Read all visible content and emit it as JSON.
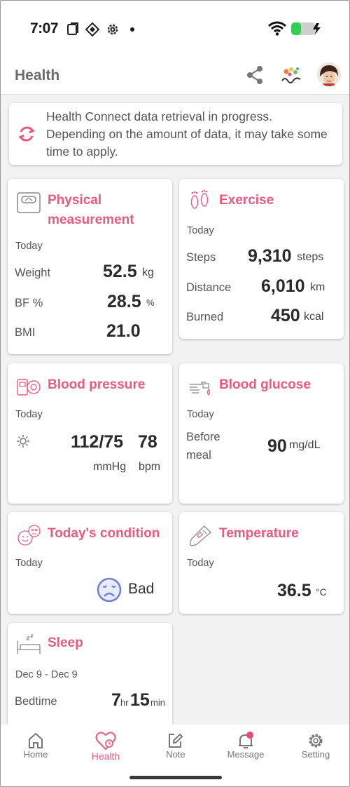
{
  "status_bar": {
    "time": "7:07"
  },
  "app_bar": {
    "title": "Health"
  },
  "notice": {
    "text": "Health Connect data retrieval in progress. Depending on the amount of data, it may take some time to apply."
  },
  "cards": {
    "physical": {
      "title_line1": "Physical",
      "title_line2": "measurement",
      "period": "Today",
      "weight_label": "Weight",
      "weight_value": "52.5",
      "weight_unit": "kg",
      "bf_label": "BF %",
      "bf_value": "28.5",
      "bf_unit": "%",
      "bmi_label": "BMI",
      "bmi_value": "21.0"
    },
    "exercise": {
      "title": "Exercise",
      "period": "Today",
      "steps_label": "Steps",
      "steps_value": "9,310",
      "steps_unit": "steps",
      "distance_label": "Distance",
      "distance_value": "6,010",
      "distance_unit": "km",
      "burned_label": "Burned",
      "burned_value": "450",
      "burned_unit": "kcal"
    },
    "blood_pressure": {
      "title": "Blood pressure",
      "period": "Today",
      "bp_value": "112/75",
      "pulse_value": "78",
      "bp_unit": "mmHg",
      "pulse_unit": "bpm"
    },
    "blood_glucose": {
      "title": "Blood glucose",
      "period": "Today",
      "label_line1": "Before",
      "label_line2": "meal",
      "value": "90",
      "unit": "mg/dL"
    },
    "condition": {
      "title": "Today's condition",
      "period": "Today",
      "value": "Bad"
    },
    "temperature": {
      "title": "Temperature",
      "period": "Today",
      "value": "36.5",
      "unit": "°C"
    },
    "sleep": {
      "title": "Sleep",
      "period": "Dec 9 - Dec 9",
      "label": "Bedtime",
      "hours": "7",
      "hours_unit": "hr",
      "minutes": "15",
      "minutes_unit": "min"
    }
  },
  "nav": {
    "items": [
      {
        "label": "Home",
        "icon": "home-icon"
      },
      {
        "label": "Health",
        "icon": "health-heart-icon"
      },
      {
        "label": "Note",
        "icon": "note-edit-icon"
      },
      {
        "label": "Message",
        "icon": "bell-icon"
      },
      {
        "label": "Setting",
        "icon": "gear-icon"
      }
    ]
  },
  "colors": {
    "accent": "#ec5a7f",
    "text": "#333333",
    "background": "#f2f2f2",
    "condition_face": "#6f7fd6"
  }
}
